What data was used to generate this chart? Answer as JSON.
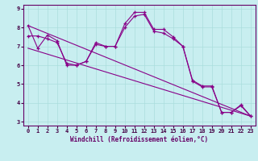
{
  "xlabel": "Windchill (Refroidissement éolien,°C)",
  "bg_color": "#c8eef0",
  "line_color": "#880088",
  "xlim": [
    -0.5,
    23.5
  ],
  "ylim": [
    2.8,
    9.2
  ],
  "xticks": [
    0,
    1,
    2,
    3,
    4,
    5,
    6,
    7,
    8,
    9,
    10,
    11,
    12,
    13,
    14,
    15,
    16,
    17,
    18,
    19,
    20,
    21,
    22,
    23
  ],
  "yticks": [
    3,
    4,
    5,
    6,
    7,
    8,
    9
  ],
  "series1_x": [
    0,
    1,
    2,
    3,
    4,
    5,
    6,
    7,
    8,
    9,
    10,
    11,
    12,
    13,
    14,
    15,
    16,
    17,
    18,
    19,
    20,
    21,
    22,
    23
  ],
  "series1_y": [
    8.1,
    6.9,
    7.6,
    7.3,
    6.0,
    6.0,
    6.2,
    7.2,
    7.0,
    7.0,
    8.2,
    8.8,
    8.8,
    7.9,
    7.9,
    7.5,
    7.0,
    5.2,
    4.9,
    4.9,
    3.5,
    3.5,
    3.9,
    3.3
  ],
  "series2_x": [
    0,
    1,
    2,
    3,
    4,
    5,
    6,
    7,
    8,
    9,
    10,
    11,
    12,
    13,
    14,
    15,
    16,
    17,
    18,
    19,
    20,
    21,
    22,
    23
  ],
  "series2_y": [
    7.55,
    7.55,
    7.4,
    7.2,
    6.1,
    6.0,
    6.2,
    7.1,
    7.0,
    7.0,
    8.0,
    8.6,
    8.7,
    7.8,
    7.7,
    7.4,
    7.0,
    5.15,
    4.85,
    4.85,
    3.5,
    3.5,
    3.85,
    3.3
  ],
  "trend1_x": [
    0,
    23
  ],
  "trend1_y": [
    8.1,
    3.3
  ],
  "trend2_x": [
    0,
    23
  ],
  "trend2_y": [
    6.9,
    3.3
  ]
}
